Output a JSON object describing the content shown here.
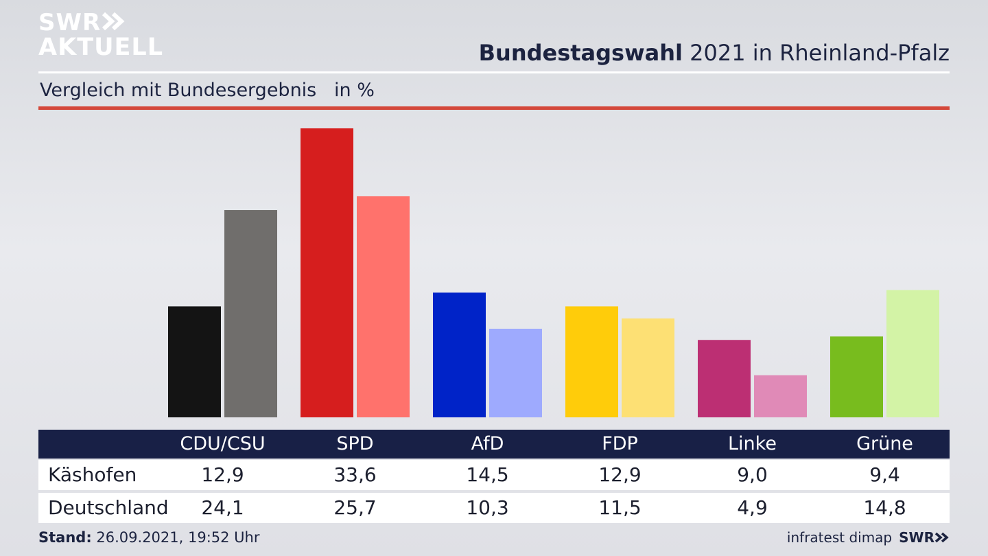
{
  "header": {
    "logo_line1": "SWR",
    "logo_line2": "AKTUELL",
    "title_bold": "Bundestagswahl",
    "title_rest": " 2021 in Rheinland-Pfalz",
    "subtitle": "Vergleich mit Bundesergebnis   in %"
  },
  "colors": {
    "rule_red": "#d4473a",
    "table_header": "#182046"
  },
  "chart_data": {
    "type": "bar",
    "categories": [
      "CDU/CSU",
      "SPD",
      "AfD",
      "FDP",
      "Linke",
      "Grüne"
    ],
    "series": [
      {
        "name": "Käshofen",
        "values": [
          12.9,
          33.6,
          14.5,
          12.9,
          9.0,
          9.4
        ]
      },
      {
        "name": "Deutschland",
        "values": [
          24.1,
          25.7,
          10.3,
          11.5,
          4.9,
          14.8
        ]
      }
    ],
    "colors": {
      "primary": [
        "#141414",
        "#d61e1e",
        "#0023c8",
        "#ffcc0a",
        "#bc2f73",
        "#78bc1e"
      ],
      "secondary": [
        "#706e6c",
        "#ff726c",
        "#9eaafe",
        "#fde074",
        "#e08ab7",
        "#d3f3a6"
      ]
    },
    "ylim": [
      0,
      35
    ],
    "xlabel": "",
    "ylabel": "",
    "grid": false
  },
  "table": {
    "headers": [
      "CDU/CSU",
      "SPD",
      "AfD",
      "FDP",
      "Linke",
      "Grüne"
    ],
    "rows": [
      {
        "label": "Käshofen",
        "values": [
          "12,9",
          "33,6",
          "14,5",
          "12,9",
          "9,0",
          "9,4"
        ]
      },
      {
        "label": "Deutschland",
        "values": [
          "24,1",
          "25,7",
          "10,3",
          "11,5",
          "4,9",
          "14,8"
        ]
      }
    ]
  },
  "footer": {
    "stand_label": "Stand:",
    "stand_value": " 26.09.2021, 19:52 Uhr",
    "source": "infratest dimap",
    "brand": "SWR"
  }
}
